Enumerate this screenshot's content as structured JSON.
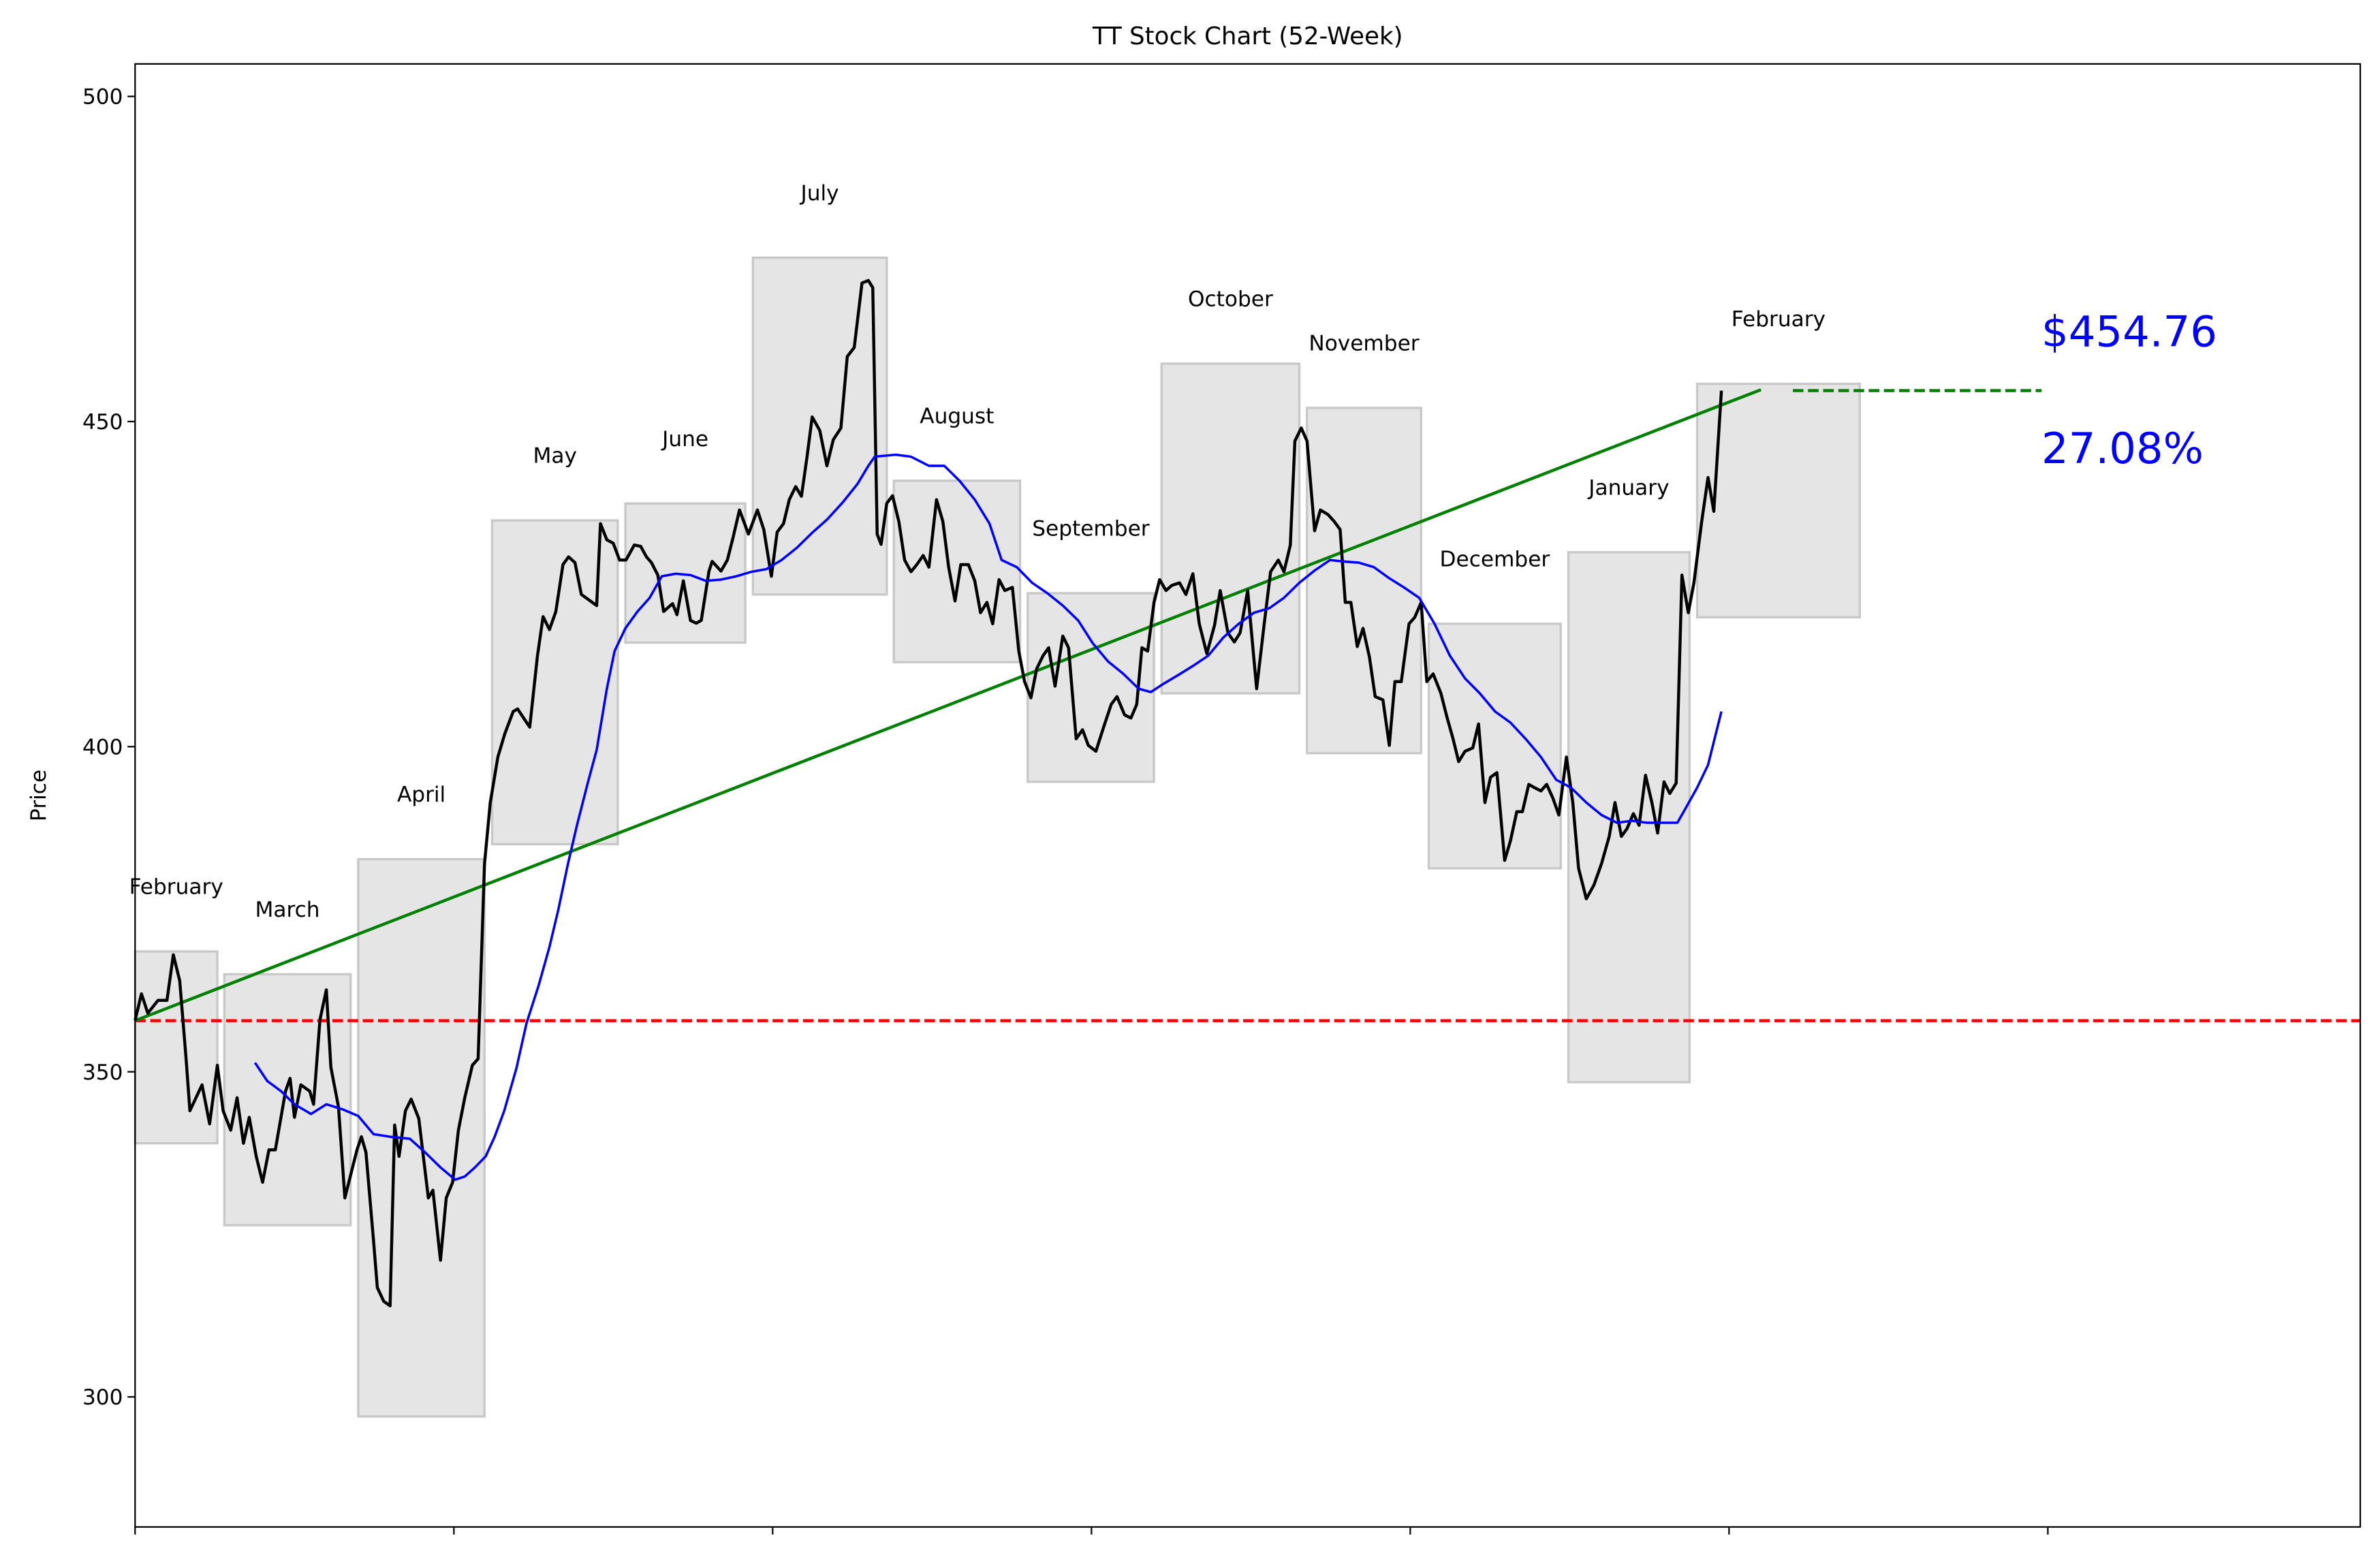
{
  "chart_data": {
    "type": "line",
    "title": "TT Stock Chart (52-Week)",
    "xlabel": "",
    "ylabel": "Price",
    "xlim": [
      0,
      349
    ],
    "ylim": [
      280,
      505
    ],
    "xticks": [
      0,
      50,
      100,
      150,
      200,
      250,
      300
    ],
    "xtick_labels": [],
    "yticks": [
      300,
      350,
      400,
      450,
      500
    ],
    "ytick_labels": [
      "300",
      "350",
      "400",
      "450",
      "500"
    ],
    "grid": false,
    "colors": {
      "price": "#000000",
      "moving_average": "#0000ff",
      "trend": "#008000",
      "baseline": "#ff0000",
      "month_box": "#d3d3d3",
      "annotation": "#0000ff"
    },
    "price": [
      [
        0,
        357.9
      ],
      [
        1,
        362
      ],
      [
        2,
        359
      ],
      [
        3.6,
        361
      ],
      [
        5,
        361
      ],
      [
        6,
        368
      ],
      [
        7,
        364
      ],
      [
        8,
        352
      ],
      [
        8.6,
        344
      ],
      [
        10.5,
        348
      ],
      [
        11.7,
        342
      ],
      [
        12.9,
        351
      ],
      [
        13.8,
        344
      ],
      [
        15,
        341
      ],
      [
        16,
        346
      ],
      [
        17,
        339
      ],
      [
        17.9,
        343
      ],
      [
        19,
        337
      ],
      [
        20,
        333
      ],
      [
        21,
        338
      ],
      [
        22,
        338
      ],
      [
        23.6,
        347
      ],
      [
        24.3,
        349
      ],
      [
        25,
        343
      ],
      [
        26,
        348
      ],
      [
        27.4,
        347
      ],
      [
        28,
        345
      ],
      [
        29,
        358
      ],
      [
        30,
        362.6
      ],
      [
        30.7,
        350.7
      ],
      [
        31.9,
        344.6
      ],
      [
        32.9,
        330.6
      ],
      [
        34.8,
        338
      ],
      [
        35.5,
        340
      ],
      [
        36.2,
        337.6
      ],
      [
        37.4,
        324
      ],
      [
        38,
        316.8
      ],
      [
        39,
        314.7
      ],
      [
        40,
        314
      ],
      [
        40.7,
        341.8
      ],
      [
        41.4,
        337
      ],
      [
        42.4,
        344
      ],
      [
        43.3,
        345.8
      ],
      [
        44.5,
        342.8
      ],
      [
        46,
        330.6
      ],
      [
        46.7,
        331.8
      ],
      [
        47.9,
        321
      ],
      [
        48.8,
        330.6
      ],
      [
        49.8,
        333
      ],
      [
        50.7,
        341
      ],
      [
        51.7,
        346
      ],
      [
        52.9,
        351
      ],
      [
        53.8,
        352
      ],
      [
        54.8,
        382
      ],
      [
        55.7,
        391.4
      ],
      [
        56.9,
        398.4
      ],
      [
        58,
        402
      ],
      [
        59.3,
        405.4
      ],
      [
        60,
        405.8
      ],
      [
        61.2,
        404
      ],
      [
        61.9,
        403
      ],
      [
        63.1,
        414
      ],
      [
        64,
        420
      ],
      [
        65,
        418
      ],
      [
        66,
        420.8
      ],
      [
        67.1,
        428
      ],
      [
        68,
        429.2
      ],
      [
        69,
        428.3
      ],
      [
        70,
        423.4
      ],
      [
        71,
        422.7
      ],
      [
        72.4,
        421.7
      ],
      [
        73,
        434.3
      ],
      [
        74,
        431.8
      ],
      [
        75,
        431.3
      ],
      [
        76,
        428.7
      ],
      [
        77,
        428.7
      ],
      [
        78.3,
        431
      ],
      [
        79.3,
        430.8
      ],
      [
        80.2,
        429.2
      ],
      [
        81,
        428.3
      ],
      [
        82,
        426.4
      ],
      [
        82.9,
        420.8
      ],
      [
        84.3,
        422
      ],
      [
        85,
        420.3
      ],
      [
        86,
        425.5
      ],
      [
        87.1,
        419.4
      ],
      [
        88,
        419
      ],
      [
        88.8,
        419.4
      ],
      [
        90,
        427
      ],
      [
        90.5,
        428.5
      ],
      [
        91.9,
        427
      ],
      [
        92.9,
        428.7
      ],
      [
        93.8,
        432.2
      ],
      [
        94.8,
        436.4
      ],
      [
        96.2,
        432.7
      ],
      [
        97.6,
        436.4
      ],
      [
        98.6,
        433.4
      ],
      [
        99.8,
        426.2
      ],
      [
        100.7,
        433
      ],
      [
        101.7,
        434.3
      ],
      [
        102.6,
        438
      ],
      [
        103.6,
        440
      ],
      [
        104.5,
        438.5
      ],
      [
        105.4,
        444.6
      ],
      [
        106.2,
        450.7
      ],
      [
        107.4,
        448.6
      ],
      [
        108.5,
        443.2
      ],
      [
        109.5,
        447.2
      ],
      [
        110.7,
        449
      ],
      [
        111.7,
        460
      ],
      [
        112.8,
        461.4
      ],
      [
        114,
        471.3
      ],
      [
        115,
        471.7
      ],
      [
        115.7,
        470.6
      ],
      [
        116.4,
        432.7
      ],
      [
        117,
        431.1
      ],
      [
        117.9,
        437.4
      ],
      [
        118.8,
        438.6
      ],
      [
        119.8,
        434.6
      ],
      [
        120.7,
        428.7
      ],
      [
        121.7,
        426.9
      ],
      [
        122.6,
        428
      ],
      [
        123.6,
        429.4
      ],
      [
        124.5,
        427.6
      ],
      [
        125.7,
        438
      ],
      [
        126.7,
        434.6
      ],
      [
        127.6,
        427.6
      ],
      [
        128.6,
        422.4
      ],
      [
        129.5,
        428
      ],
      [
        130.7,
        428
      ],
      [
        131.7,
        425.5
      ],
      [
        132.6,
        420.6
      ],
      [
        133.6,
        422.2
      ],
      [
        134.5,
        418.9
      ],
      [
        135.5,
        425.7
      ],
      [
        136.4,
        424
      ],
      [
        137.6,
        424.5
      ],
      [
        138.6,
        414.7
      ],
      [
        139.5,
        410
      ],
      [
        140.5,
        407.5
      ],
      [
        141.4,
        412
      ],
      [
        142.4,
        414
      ],
      [
        143.3,
        415.2
      ],
      [
        144.3,
        409.3
      ],
      [
        145.5,
        417
      ],
      [
        146.4,
        415.2
      ],
      [
        147.6,
        401.2
      ],
      [
        148.6,
        402.6
      ],
      [
        149.5,
        400.2
      ],
      [
        150.7,
        399.3
      ],
      [
        151.9,
        403
      ],
      [
        153.1,
        406.5
      ],
      [
        154,
        407.7
      ],
      [
        155.2,
        404.9
      ],
      [
        156.2,
        404.4
      ],
      [
        157.1,
        406.5
      ],
      [
        157.9,
        415.2
      ],
      [
        158.8,
        414.7
      ],
      [
        159.8,
        422.2
      ],
      [
        160.7,
        425.7
      ],
      [
        161.7,
        424
      ],
      [
        162.6,
        424.8
      ],
      [
        163.8,
        425.2
      ],
      [
        164.8,
        423.4
      ],
      [
        165.9,
        426.6
      ],
      [
        166.9,
        418.9
      ],
      [
        168.1,
        414.3
      ],
      [
        169.3,
        418.7
      ],
      [
        170.2,
        424
      ],
      [
        171.4,
        417.5
      ],
      [
        172.4,
        416.1
      ],
      [
        173.3,
        417.5
      ],
      [
        174.5,
        424
      ],
      [
        175.9,
        408.9
      ],
      [
        177.1,
        418.9
      ],
      [
        178.1,
        426.9
      ],
      [
        179.3,
        428.7
      ],
      [
        180.2,
        426.9
      ],
      [
        181.2,
        431
      ],
      [
        181.9,
        447
      ],
      [
        182.9,
        449
      ],
      [
        183.8,
        447
      ],
      [
        185,
        433.2
      ],
      [
        185.9,
        436.4
      ],
      [
        187.1,
        435.7
      ],
      [
        188.1,
        434.6
      ],
      [
        189,
        433.4
      ],
      [
        189.8,
        422.2
      ],
      [
        190.7,
        422.2
      ],
      [
        191.7,
        415.4
      ],
      [
        192.6,
        418.2
      ],
      [
        193.6,
        413.8
      ],
      [
        194.5,
        407.7
      ],
      [
        195.7,
        407.2
      ],
      [
        196.7,
        400.2
      ],
      [
        197.6,
        410
      ],
      [
        198.6,
        410
      ],
      [
        199.8,
        418.9
      ],
      [
        200.7,
        419.9
      ],
      [
        201.7,
        422.2
      ],
      [
        202.6,
        410
      ],
      [
        203.6,
        411.2
      ],
      [
        204.8,
        408.2
      ],
      [
        205.7,
        404.7
      ],
      [
        206.7,
        401.2
      ],
      [
        207.6,
        397.7
      ],
      [
        208.6,
        399.3
      ],
      [
        209.8,
        399.8
      ],
      [
        210.7,
        403.5
      ],
      [
        211.7,
        391.4
      ],
      [
        212.6,
        395.3
      ],
      [
        213.6,
        396
      ],
      [
        214.8,
        382.5
      ],
      [
        215.7,
        385.5
      ],
      [
        216.7,
        390
      ],
      [
        217.6,
        390
      ],
      [
        218.6,
        394.2
      ],
      [
        219.5,
        393.7
      ],
      [
        220.5,
        393.2
      ],
      [
        221.4,
        394.2
      ],
      [
        222.4,
        392
      ],
      [
        223.3,
        389.5
      ],
      [
        224.5,
        398.4
      ],
      [
        225.5,
        391.4
      ],
      [
        226.4,
        381.3
      ],
      [
        227.6,
        376.6
      ],
      [
        228.8,
        378.7
      ],
      [
        230,
        382
      ],
      [
        231.2,
        386.2
      ],
      [
        232.1,
        391.4
      ],
      [
        233.1,
        386.2
      ],
      [
        234,
        387.4
      ],
      [
        235,
        389.7
      ],
      [
        235.9,
        387.9
      ],
      [
        236.9,
        395.6
      ],
      [
        237.9,
        391.4
      ],
      [
        238.8,
        386.7
      ],
      [
        239.8,
        394.6
      ],
      [
        240.7,
        392.8
      ],
      [
        241.7,
        394.4
      ],
      [
        242.6,
        426.4
      ],
      [
        243.6,
        420.6
      ],
      [
        244.5,
        425.2
      ],
      [
        245.7,
        434.6
      ],
      [
        246.7,
        441.4
      ],
      [
        247.6,
        436.2
      ],
      [
        248.8,
        454.76
      ]
    ],
    "moving_average": [
      [
        18.8,
        351.4
      ],
      [
        20.7,
        348.6
      ],
      [
        22.9,
        347
      ],
      [
        25,
        345
      ],
      [
        27.6,
        343.5
      ],
      [
        30,
        345
      ],
      [
        32.6,
        344.2
      ],
      [
        35,
        343.2
      ],
      [
        37.4,
        340.4
      ],
      [
        40,
        340
      ],
      [
        43.1,
        339.7
      ],
      [
        45.5,
        337.6
      ],
      [
        47.9,
        335.3
      ],
      [
        50.2,
        333.4
      ],
      [
        51.7,
        333.9
      ],
      [
        53.3,
        335.3
      ],
      [
        55,
        337
      ],
      [
        56.4,
        340
      ],
      [
        57.9,
        344
      ],
      [
        59.8,
        350.5
      ],
      [
        61.4,
        357.5
      ],
      [
        63.3,
        363.3
      ],
      [
        65,
        369.2
      ],
      [
        66.4,
        375
      ],
      [
        67.9,
        382
      ],
      [
        69.3,
        387.9
      ],
      [
        71,
        394.4
      ],
      [
        72.4,
        399.5
      ],
      [
        74,
        408.9
      ],
      [
        75.2,
        414.7
      ],
      [
        76.9,
        418.2
      ],
      [
        78.8,
        420.8
      ],
      [
        80.7,
        422.9
      ],
      [
        82.6,
        426.2
      ],
      [
        84.8,
        426.6
      ],
      [
        87.1,
        426.4
      ],
      [
        89.5,
        425.5
      ],
      [
        91.9,
        425.7
      ],
      [
        94.3,
        426.2
      ],
      [
        96.7,
        426.9
      ],
      [
        99,
        427.3
      ],
      [
        101.4,
        428.7
      ],
      [
        103.8,
        430.6
      ],
      [
        106.2,
        432.9
      ],
      [
        108.6,
        435
      ],
      [
        111,
        437.6
      ],
      [
        113.3,
        440.4
      ],
      [
        115,
        443.2
      ],
      [
        116,
        444.6
      ],
      [
        119.3,
        444.9
      ],
      [
        121.7,
        444.6
      ],
      [
        124.5,
        443.2
      ],
      [
        126.9,
        443.2
      ],
      [
        129.3,
        440.9
      ],
      [
        131.7,
        438
      ],
      [
        134,
        434.3
      ],
      [
        135.9,
        428.7
      ],
      [
        138.3,
        427.6
      ],
      [
        140.7,
        425.2
      ],
      [
        143.1,
        423.6
      ],
      [
        145.5,
        421.7
      ],
      [
        147.9,
        419.4
      ],
      [
        150.2,
        415.9
      ],
      [
        152.6,
        413.1
      ],
      [
        155,
        411.2
      ],
      [
        157.4,
        408.9
      ],
      [
        159.3,
        408.4
      ],
      [
        161.2,
        409.6
      ],
      [
        163.6,
        411
      ],
      [
        165.9,
        412.4
      ],
      [
        168.3,
        414
      ],
      [
        170.7,
        416.8
      ],
      [
        173.1,
        418.9
      ],
      [
        175.5,
        420.6
      ],
      [
        177.9,
        421.3
      ],
      [
        180.2,
        422.9
      ],
      [
        182.6,
        425.2
      ],
      [
        185,
        427.1
      ],
      [
        187.4,
        428.7
      ],
      [
        189.3,
        428.5
      ],
      [
        191.9,
        428.3
      ],
      [
        194.3,
        427.6
      ],
      [
        196.7,
        425.9
      ],
      [
        199,
        424.5
      ],
      [
        201.4,
        422.9
      ],
      [
        203.8,
        418.9
      ],
      [
        206.2,
        414
      ],
      [
        208.6,
        410.5
      ],
      [
        210.9,
        408.2
      ],
      [
        213.3,
        405.4
      ],
      [
        215.7,
        403.7
      ],
      [
        218.1,
        401.2
      ],
      [
        220.5,
        398.4
      ],
      [
        222.9,
        394.9
      ],
      [
        225.2,
        393.7
      ],
      [
        227.6,
        391.4
      ],
      [
        230,
        389.5
      ],
      [
        232.4,
        388.3
      ],
      [
        234.8,
        388.6
      ],
      [
        237.1,
        388.3
      ],
      [
        240.7,
        388.3
      ],
      [
        241.9,
        388.3
      ],
      [
        243.1,
        390.4
      ],
      [
        245,
        393.7
      ],
      [
        246.7,
        397.2
      ],
      [
        248.8,
        405.4
      ]
    ],
    "trend_line": {
      "from": [
        0,
        357.86
      ],
      "to": [
        255,
        454.9
      ]
    },
    "current_price_line": {
      "from": 260,
      "to": 299,
      "value": 454.76
    },
    "baseline": 357.86,
    "months": [
      {
        "label": "February",
        "start": 0,
        "end": 12.9,
        "low": 339,
        "high": 368.5
      },
      {
        "label": "March",
        "start": 14,
        "end": 33.8,
        "low": 326.4,
        "high": 365
      },
      {
        "label": "April",
        "start": 35,
        "end": 54.8,
        "low": 297,
        "high": 382.7
      },
      {
        "label": "May",
        "start": 56,
        "end": 75.7,
        "low": 385,
        "high": 434.8
      },
      {
        "label": "June",
        "start": 76.9,
        "end": 95.7,
        "low": 416,
        "high": 437.4
      },
      {
        "label": "July",
        "start": 96.9,
        "end": 117.9,
        "low": 423.4,
        "high": 475.2
      },
      {
        "label": "August",
        "start": 119,
        "end": 138.8,
        "low": 413,
        "high": 440.9
      },
      {
        "label": "September",
        "start": 140,
        "end": 159.8,
        "low": 394.6,
        "high": 423.6
      },
      {
        "label": "October",
        "start": 161,
        "end": 182.6,
        "low": 408.2,
        "high": 458.9
      },
      {
        "label": "November",
        "start": 183.8,
        "end": 201.7,
        "low": 399,
        "high": 452.1
      },
      {
        "label": "December",
        "start": 202.9,
        "end": 223.6,
        "low": 381.3,
        "high": 418.9
      },
      {
        "label": "January",
        "start": 224.8,
        "end": 243.8,
        "low": 348.4,
        "high": 429.9
      },
      {
        "label": "February",
        "start": 245,
        "end": 270.5,
        "low": 419.9,
        "high": 455.8
      }
    ],
    "annotations": {
      "price": "$454.76",
      "change": "27.08%"
    }
  }
}
